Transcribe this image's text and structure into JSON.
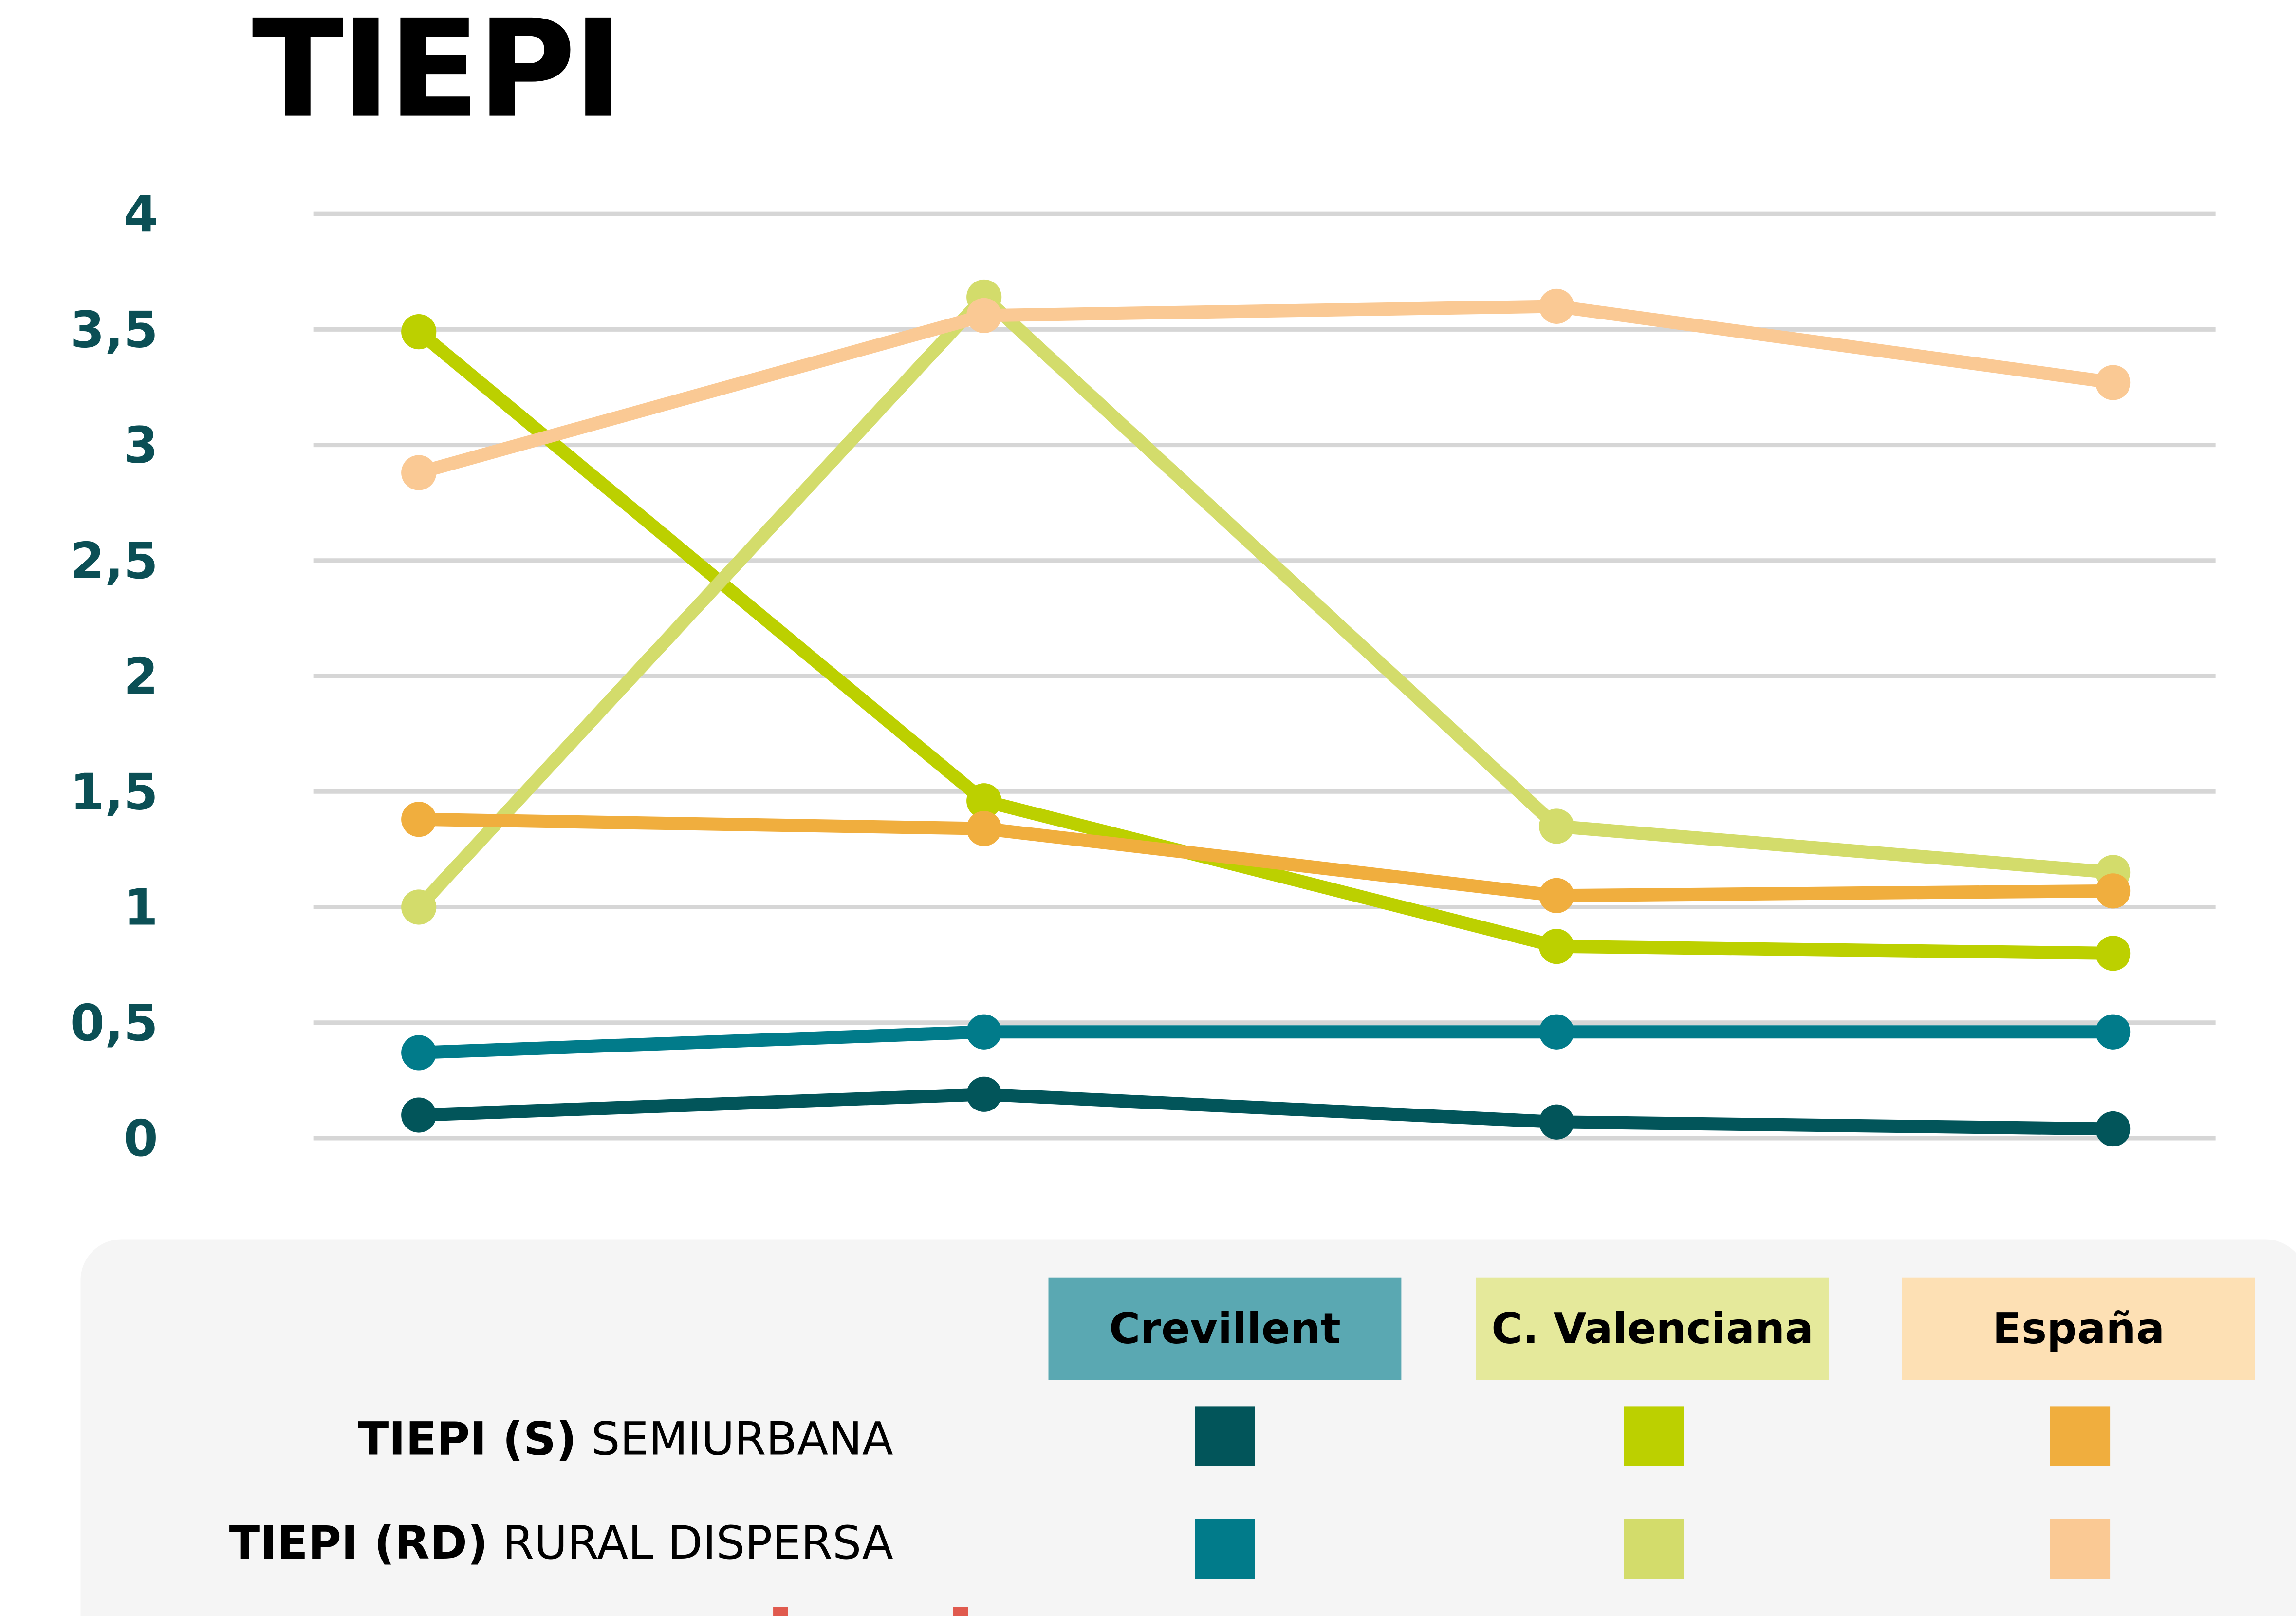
{
  "chart_data": {
    "type": "line",
    "title": "TIEPI",
    "xlabel": "",
    "ylabel": "",
    "ylim": [
      0,
      4
    ],
    "yticks": [
      "0",
      "0,5",
      "1",
      "1,5",
      "2",
      "2,5",
      "3",
      "3,5",
      "4"
    ],
    "ytick_values": [
      0,
      0.5,
      1,
      1.5,
      2,
      2.5,
      3,
      3.5,
      4
    ],
    "grid": true,
    "x": [
      1,
      2,
      3,
      4
    ],
    "series": [
      {
        "name": "Crevillent TIEPI (S) Semiurbana",
        "color": "#02555a",
        "values": [
          0.1,
          0.19,
          0.07,
          0.04
        ]
      },
      {
        "name": "Crevillent TIEPI (RD) Rural Dispersa",
        "color": "#017b8a",
        "values": [
          0.37,
          0.46,
          0.46,
          0.46
        ]
      },
      {
        "name": "C. Valenciana TIEPI (S) Semiurbana",
        "color": "#bcd000",
        "values": [
          3.49,
          1.46,
          0.83,
          0.8
        ]
      },
      {
        "name": "C. Valenciana TIEPI (RD) Rural Dispersa",
        "color": "#d3dc6b",
        "values": [
          1.0,
          3.64,
          1.35,
          1.15
        ]
      },
      {
        "name": "España TIEPI (S) Semiurbana",
        "color": "#f0ae3e",
        "values": [
          1.38,
          1.34,
          1.05,
          1.07
        ]
      },
      {
        "name": "España TIEPI (RD) Rural Dispersa",
        "color": "#fac994",
        "values": [
          2.88,
          3.56,
          3.6,
          3.27
        ]
      }
    ],
    "legend": {
      "placement": "bottom",
      "columns": [
        {
          "label": "Crevillent",
          "color": "#5aa8b2"
        },
        {
          "label": "C. Valenciana",
          "color": "#e5e99b"
        },
        {
          "label": "España",
          "color": "#fde0b4"
        }
      ],
      "rows": [
        {
          "bold": "TIEPI (S)",
          "label": "SEMIURBANA",
          "colors": [
            "#02555a",
            "#bcd000",
            "#f0ae3e"
          ]
        },
        {
          "bold": "TIEPI (RD)",
          "label": "RURAL DISPERSA",
          "colors": [
            "#017b8a",
            "#d3dc6b",
            "#fac994"
          ]
        }
      ]
    }
  }
}
